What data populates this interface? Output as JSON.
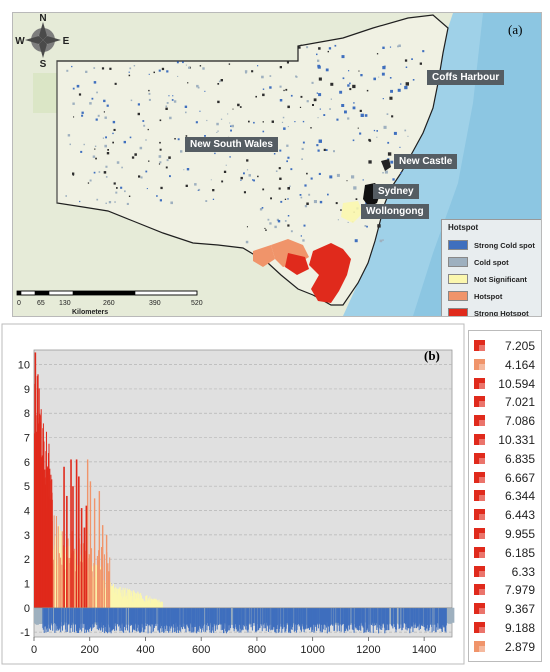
{
  "panel_a": {
    "letter": "(a)",
    "compass": {
      "n": "N",
      "s": "S",
      "e": "E",
      "w": "W"
    },
    "region_label": "New South Wales",
    "cities": [
      {
        "name": "Coffs Harbour"
      },
      {
        "name": "New Castle"
      },
      {
        "name": "Sydney"
      },
      {
        "name": "Wollongong"
      }
    ],
    "legend": {
      "title": "Hotspot",
      "items": [
        {
          "label": "Strong Cold spot",
          "color": "#3f6fbe"
        },
        {
          "label": "Cold spot",
          "color": "#9eb0bf"
        },
        {
          "label": "Not Significant",
          "color": "#fbf7ae"
        },
        {
          "label": "Hotspot",
          "color": "#f0946a"
        },
        {
          "label": "Strong Hotspot",
          "color": "#e02a1c"
        }
      ]
    },
    "scale_bar": {
      "ticks": [
        "0",
        "65",
        "130",
        "260",
        "390",
        "520"
      ],
      "unit": "Kilometers"
    }
  },
  "chart_data": {
    "type": "bar",
    "letter": "(b)",
    "xlim": [
      0,
      1500
    ],
    "ylim": [
      -1.2,
      10.6
    ],
    "xticks": [
      0,
      200,
      400,
      600,
      800,
      1000,
      1200,
      1400
    ],
    "yticks": [
      -1,
      0,
      1,
      2,
      3,
      4,
      5,
      6,
      7,
      8,
      9,
      10
    ],
    "grid": true,
    "classes": [
      {
        "label": "Strong Hotspot",
        "color": "#e02a1c",
        "approx_range": [
          0,
          70
        ]
      },
      {
        "label": "Hotspot",
        "color": "#f0946a",
        "approx_range": [
          0,
          270
        ]
      },
      {
        "label": "Not Significant",
        "color": "#fbf7ae",
        "approx_range": [
          0,
          450
        ]
      },
      {
        "label": "Cold spot",
        "color": "#9eb0bf",
        "approx_range": [
          0,
          1500
        ]
      },
      {
        "label": "Strong Cold spot",
        "color": "#3f6fbe",
        "approx_range": [
          30,
          1480
        ]
      }
    ],
    "value_list": [
      {
        "value": "7.205",
        "color": "#e02a1c"
      },
      {
        "value": "4.164",
        "color": "#f0946a"
      },
      {
        "value": "10.594",
        "color": "#e02a1c"
      },
      {
        "value": "7.021",
        "color": "#e02a1c"
      },
      {
        "value": "7.086",
        "color": "#e02a1c"
      },
      {
        "value": "10.331",
        "color": "#e02a1c"
      },
      {
        "value": "6.835",
        "color": "#e02a1c"
      },
      {
        "value": "6.667",
        "color": "#e02a1c"
      },
      {
        "value": "6.344",
        "color": "#e02a1c"
      },
      {
        "value": "6.443",
        "color": "#e02a1c"
      },
      {
        "value": "9.955",
        "color": "#e02a1c"
      },
      {
        "value": "6.185",
        "color": "#e02a1c"
      },
      {
        "value": "6.33",
        "color": "#e02a1c"
      },
      {
        "value": "7.979",
        "color": "#e02a1c"
      },
      {
        "value": "9.367",
        "color": "#e02a1c"
      },
      {
        "value": "9.188",
        "color": "#e02a1c"
      },
      {
        "value": "2.879",
        "color": "#f0946a"
      }
    ]
  }
}
